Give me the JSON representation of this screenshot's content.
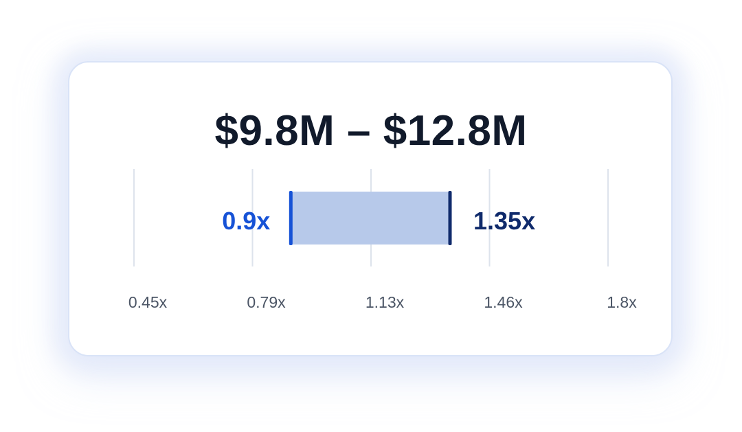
{
  "range_label": "$9.8M – $12.8M",
  "colors": {
    "low": "#1652d6",
    "high": "#0f2a6b",
    "bar_fill": "#b7c9ea",
    "grid": "#dde3ec",
    "tick_text": "#4b5565",
    "title": "#111a2b"
  },
  "chart_data": {
    "type": "bar",
    "orientation": "horizontal-range",
    "xlim": [
      0.45,
      1.8
    ],
    "ticks": [
      {
        "value": 0.45,
        "label": "0.45x"
      },
      {
        "value": 0.79,
        "label": "0.79x"
      },
      {
        "value": 1.13,
        "label": "1.13x"
      },
      {
        "value": 1.46,
        "label": "1.46x"
      },
      {
        "value": 1.8,
        "label": "1.8x"
      }
    ],
    "range": {
      "low": 0.9,
      "high": 1.35,
      "low_label": "0.9x",
      "high_label": "1.35x"
    },
    "grid": true
  }
}
